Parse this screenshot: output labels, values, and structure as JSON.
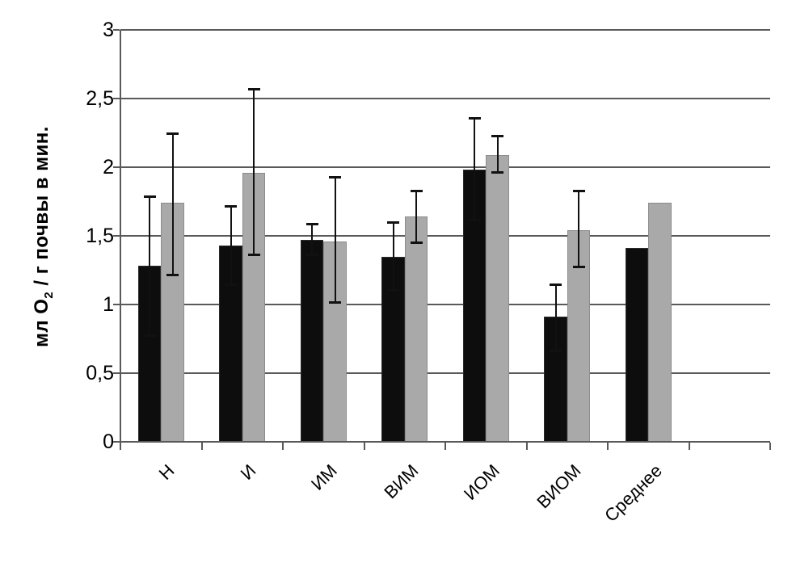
{
  "chart_data": {
    "type": "bar",
    "title": "",
    "xlabel": "",
    "ylabel": {
      "pre": "мл O",
      "sub": "2",
      "post": " / г почвы в мин."
    },
    "ylim": [
      0,
      3
    ],
    "grid": true,
    "legend": "none",
    "decimal_separator": ",",
    "categories": [
      "Н",
      "И",
      "ИМ",
      "ВИМ",
      "ИОМ",
      "ВИОМ",
      "Среднее"
    ],
    "yticks": [
      {
        "label": "0",
        "value": 0
      },
      {
        "label": "0,5",
        "value": 0.5
      },
      {
        "label": "1",
        "value": 1
      },
      {
        "label": "1,5",
        "value": 1.5
      },
      {
        "label": "2",
        "value": 2
      },
      {
        "label": "2,5",
        "value": 2.5
      },
      {
        "label": "3",
        "value": 3
      }
    ],
    "series": [
      {
        "color": "#0d0d0d",
        "border_color": "#2b2b2b",
        "values": [
          1.28,
          1.43,
          1.47,
          1.35,
          1.98,
          0.91,
          1.41
        ],
        "error_low": [
          0.77,
          1.14,
          1.36,
          1.1,
          1.61,
          0.66,
          null
        ],
        "error_high": [
          1.79,
          1.72,
          1.59,
          1.6,
          2.36,
          1.15,
          null
        ]
      },
      {
        "color": "#a9a9a9",
        "border_color": "#8c8c8c",
        "values": [
          1.74,
          1.96,
          1.46,
          1.64,
          2.09,
          1.54,
          1.74
        ],
        "error_low": [
          1.21,
          1.36,
          1.01,
          1.45,
          1.96,
          1.27,
          null
        ],
        "error_high": [
          2.25,
          2.57,
          1.93,
          1.83,
          2.23,
          1.83,
          null
        ]
      }
    ],
    "colors": {
      "axis": "#595959",
      "gridline": "#595959",
      "error_bar": "#111111",
      "text": "#000000",
      "background": "#ffffff"
    },
    "layout_hint": {
      "empty_trailing_slots": 1,
      "legend_position": "none"
    }
  }
}
